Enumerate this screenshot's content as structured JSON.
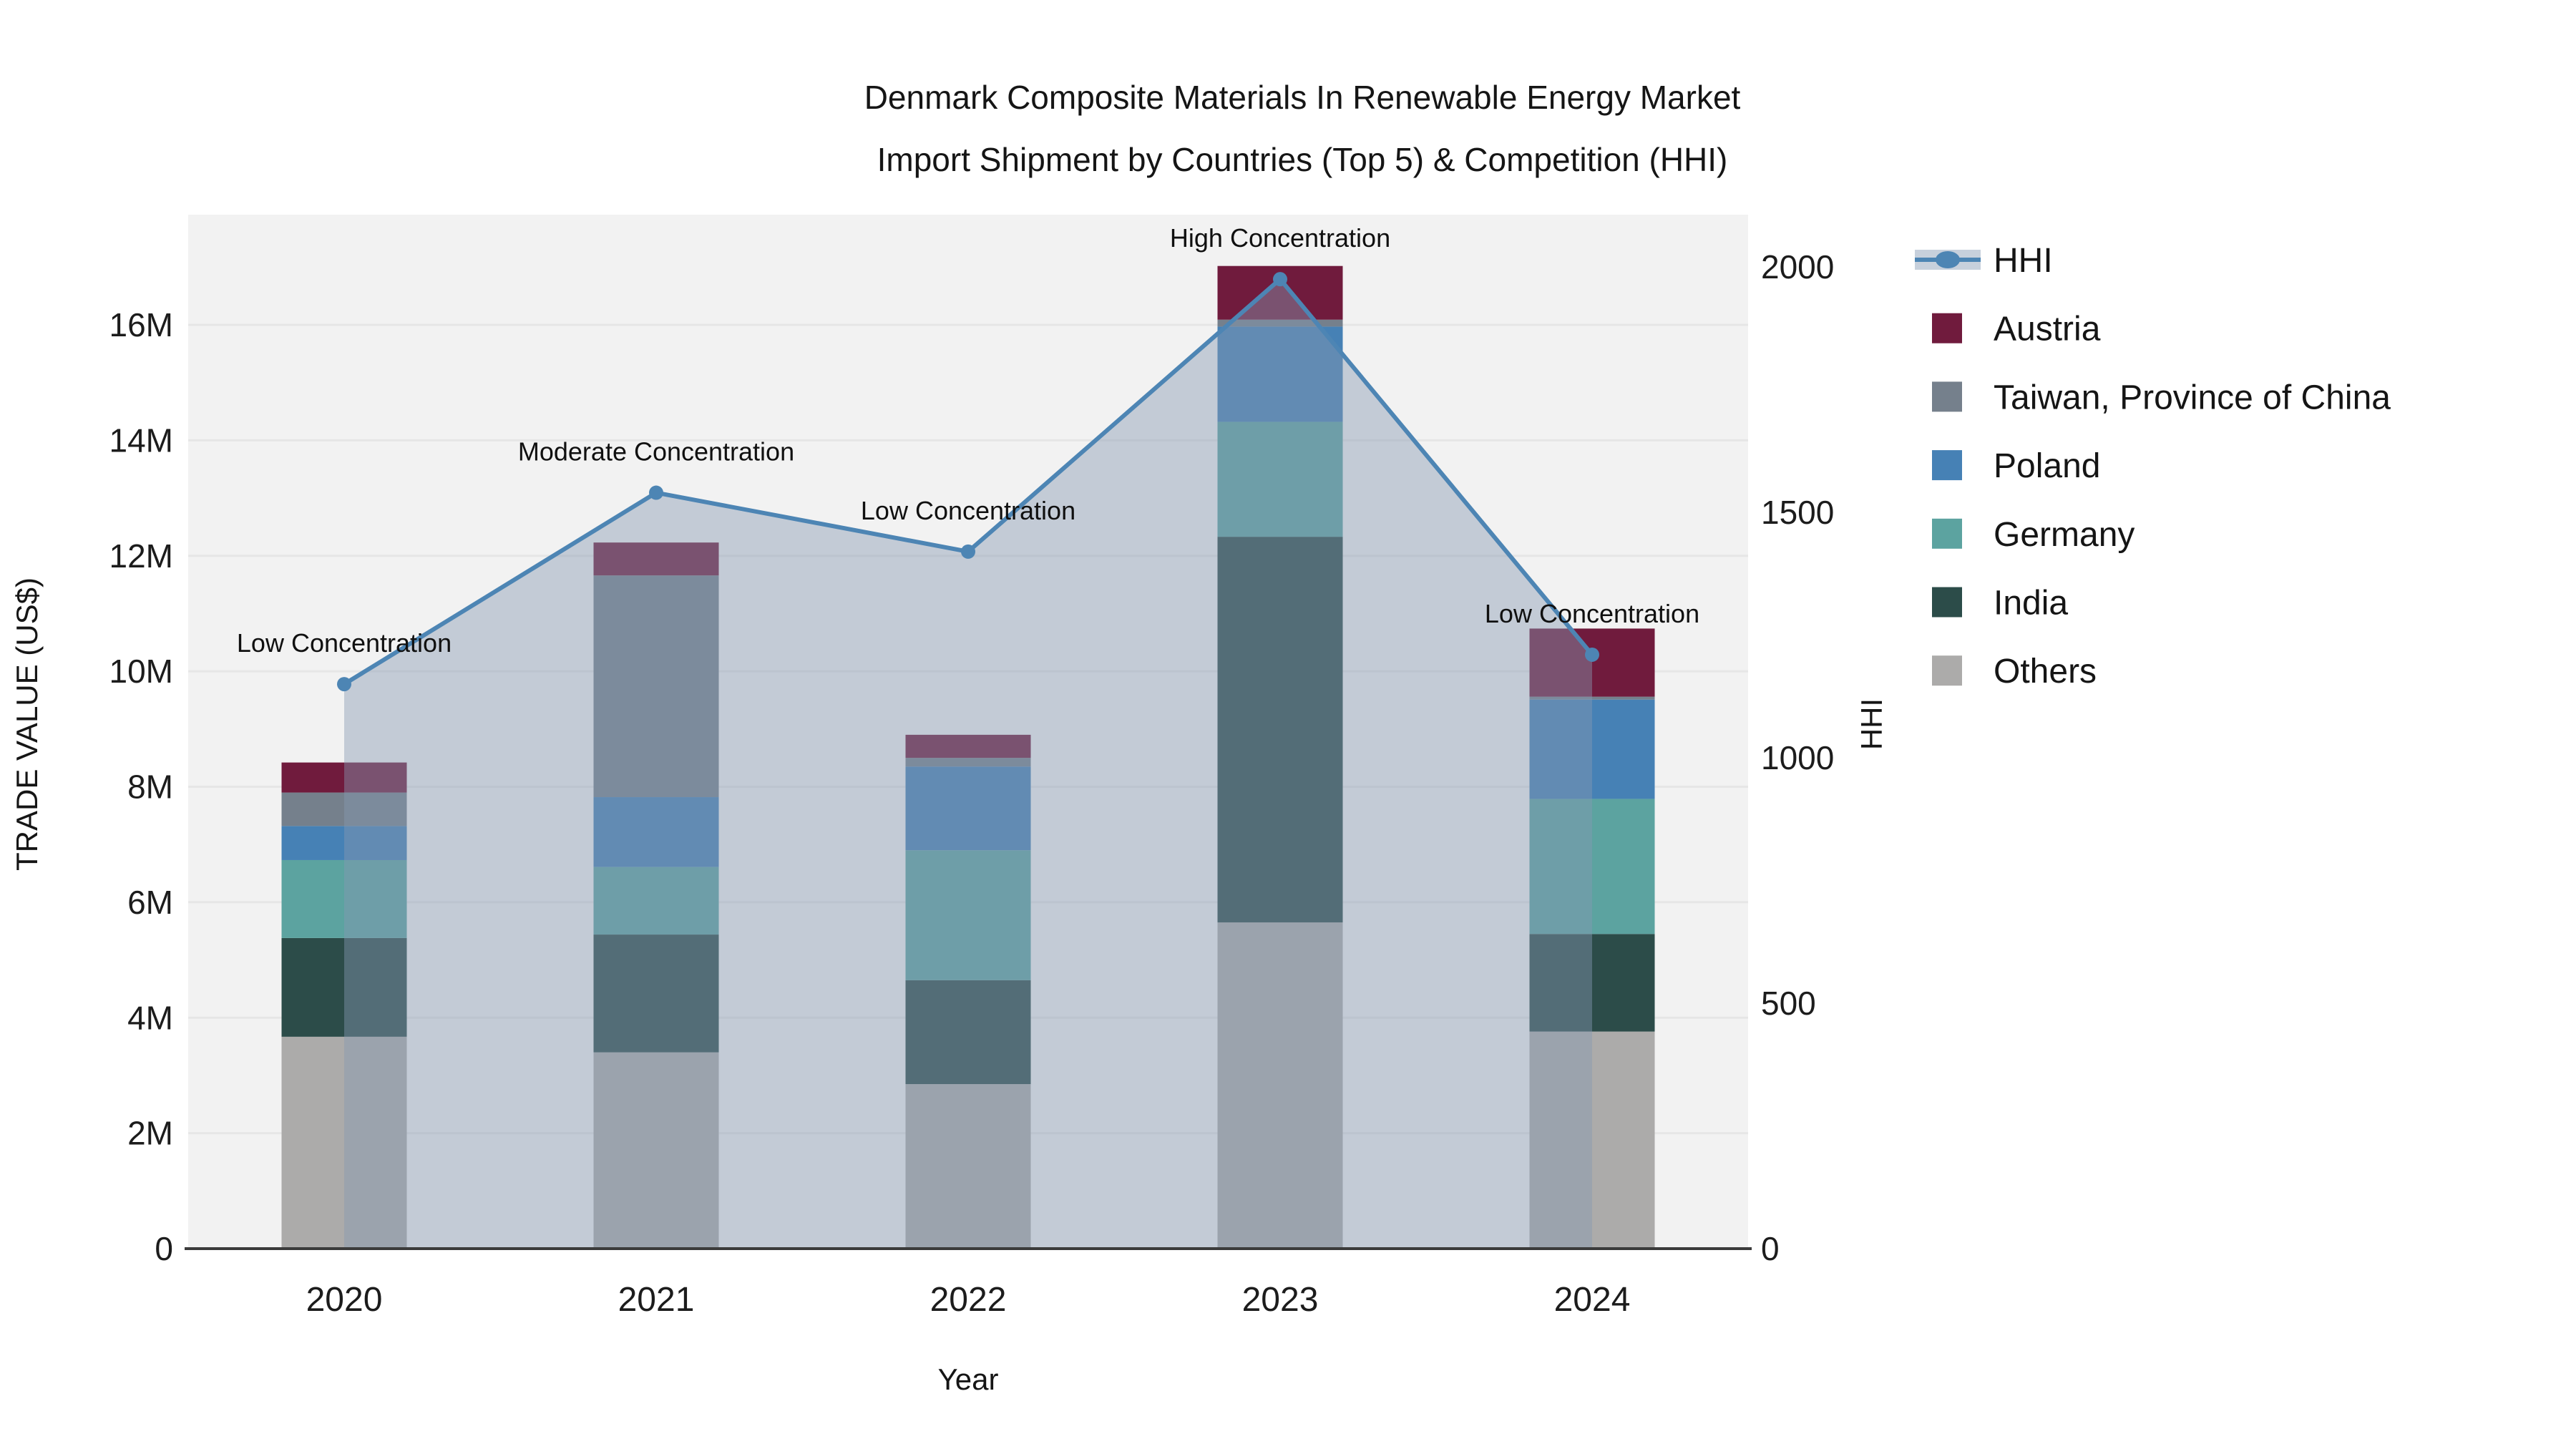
{
  "title": {
    "line1": "Denmark Composite Materials In Renewable Energy Market",
    "line2": "Import Shipment by Countries (Top 5) & Competition (HHI)"
  },
  "axes": {
    "x": {
      "label": "Year",
      "categories": [
        "2020",
        "2021",
        "2022",
        "2023",
        "2024"
      ]
    },
    "y_left": {
      "label": "TRADE VALUE (US$)",
      "tick_values": [
        0,
        2,
        4,
        6,
        8,
        10,
        12,
        14,
        16
      ],
      "tick_labels": [
        "0",
        "2M",
        "4M",
        "6M",
        "8M",
        "10M",
        "12M",
        "14M",
        "16M"
      ],
      "max": 16
    },
    "y_right": {
      "label": "HHI",
      "tick_values": [
        0,
        500,
        1000,
        1500,
        2000
      ],
      "tick_labels": [
        "0",
        "500",
        "1000",
        "1500",
        "2000"
      ],
      "max": 2000
    }
  },
  "colors": {
    "hhi_line": "#4D85B4",
    "hhi_fill": "rgba(135,153,177,0.44)",
    "austria": "#701B3D",
    "taiwan": "#75808C",
    "poland": "#4681B5",
    "germany": "#5CA3A0",
    "india": "#2C4C49",
    "others": "#ACABAA",
    "plot_bg": "#f2f2f2",
    "grid": "#e6e6e6",
    "axis_line": "#3b3b3b"
  },
  "legend": {
    "items": [
      {
        "label": "HHI",
        "type": "line",
        "color": "#4D85B4"
      },
      {
        "label": "Austria",
        "type": "swatch",
        "color": "#701B3D"
      },
      {
        "label": "Taiwan, Province of China",
        "type": "swatch",
        "color": "#75808C"
      },
      {
        "label": "Poland",
        "type": "swatch",
        "color": "#4681B5"
      },
      {
        "label": "Germany",
        "type": "swatch",
        "color": "#5CA3A0"
      },
      {
        "label": "India",
        "type": "swatch",
        "color": "#2C4C49"
      },
      {
        "label": "Others",
        "type": "swatch",
        "color": "#ACABAA"
      }
    ]
  },
  "chart_data": {
    "type": "bar",
    "subtype": "stacked-bars-with-line",
    "title": "Denmark Composite Materials In Renewable Energy Market Import Shipment by Countries (Top 5) & Competition (HHI)",
    "xlabel": "Year",
    "ylabel_left": "TRADE VALUE (US$)",
    "ylabel_right": "HHI",
    "ylim_left_millions": [
      0,
      18
    ],
    "ylim_right": [
      0,
      2100
    ],
    "grid": true,
    "legend_position": "right",
    "categories": [
      "2020",
      "2021",
      "2022",
      "2023",
      "2024"
    ],
    "unit": "US$ millions",
    "series": [
      {
        "name": "Others",
        "color": "#ACABAA",
        "values": [
          3.67,
          3.4,
          2.85,
          5.65,
          3.76
        ]
      },
      {
        "name": "India",
        "color": "#2C4C49",
        "values": [
          1.71,
          2.04,
          1.8,
          6.68,
          1.69
        ]
      },
      {
        "name": "Germany",
        "color": "#5CA3A0",
        "values": [
          1.35,
          1.17,
          2.25,
          1.99,
          2.34
        ]
      },
      {
        "name": "Poland",
        "color": "#4681B5",
        "values": [
          0.59,
          1.21,
          1.45,
          1.65,
          1.72
        ]
      },
      {
        "name": "Taiwan, Province of China",
        "color": "#75808C",
        "values": [
          0.58,
          3.84,
          0.15,
          0.12,
          0.05
        ]
      },
      {
        "name": "Austria",
        "color": "#701B3D",
        "values": [
          0.52,
          0.57,
          0.4,
          0.93,
          1.18
        ]
      }
    ],
    "line_series": {
      "name": "HHI",
      "axis": "right",
      "color": "#4D85B4",
      "values": [
        1150,
        1540,
        1420,
        1975,
        1210
      ],
      "area_fill": true
    },
    "annotations": [
      {
        "x": "2020",
        "text": "Low Concentration"
      },
      {
        "x": "2021",
        "text": "Moderate Concentration"
      },
      {
        "x": "2022",
        "text": "Low Concentration"
      },
      {
        "x": "2023",
        "text": "High Concentration"
      },
      {
        "x": "2024",
        "text": "Low Concentration"
      }
    ]
  }
}
